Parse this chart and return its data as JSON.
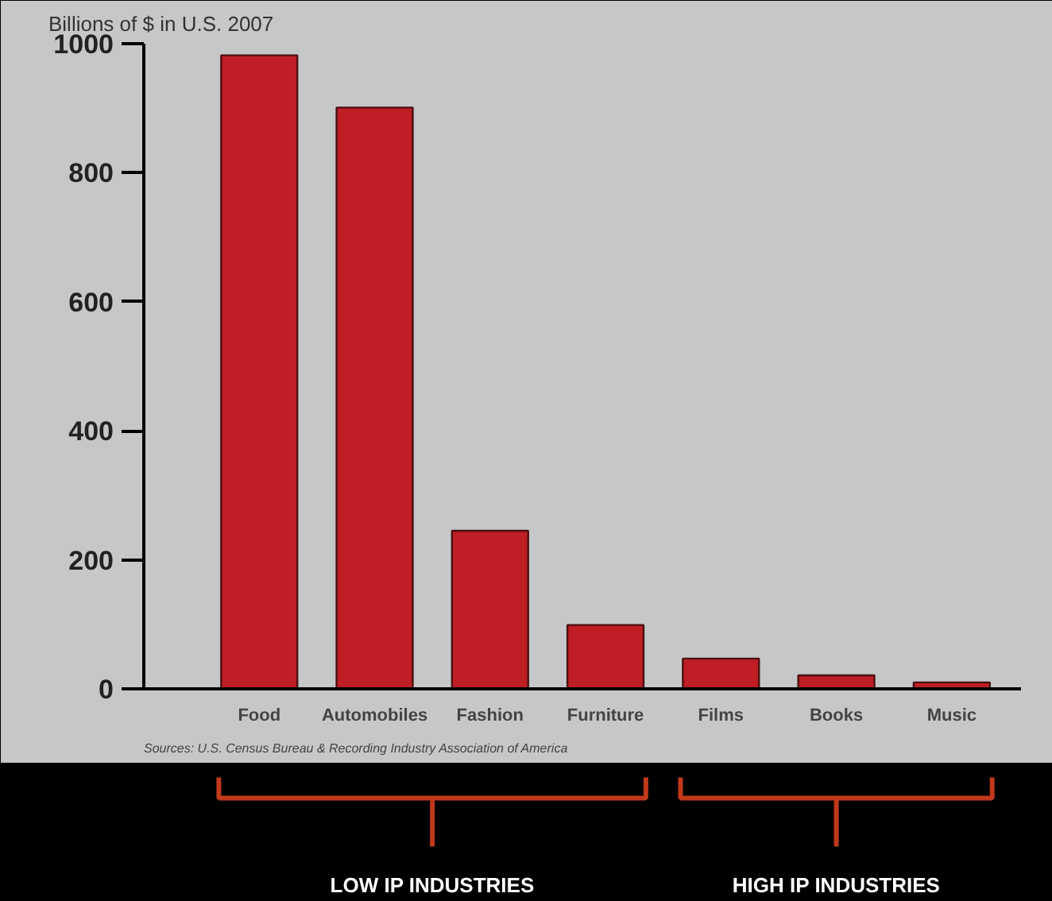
{
  "chart_data": {
    "type": "bar",
    "ylabel": "Billions of $ in U.S. 2007",
    "categories": [
      "Food",
      "Automobiles",
      "Fashion",
      "Furniture",
      "Films",
      "Books",
      "Music"
    ],
    "values": [
      982,
      901,
      245,
      99,
      47,
      21,
      10
    ],
    "color": "#be1e24",
    "ylim": [
      0,
      1000
    ],
    "yticks": [
      0,
      200,
      400,
      600,
      800,
      1000
    ],
    "grid": false,
    "annotations": [
      "Sources: U.S. Census Bureau & Recording Industry Association of America",
      "LOW IP INDUSTRIES",
      "HIGH IP INDUSTRIES"
    ]
  }
}
